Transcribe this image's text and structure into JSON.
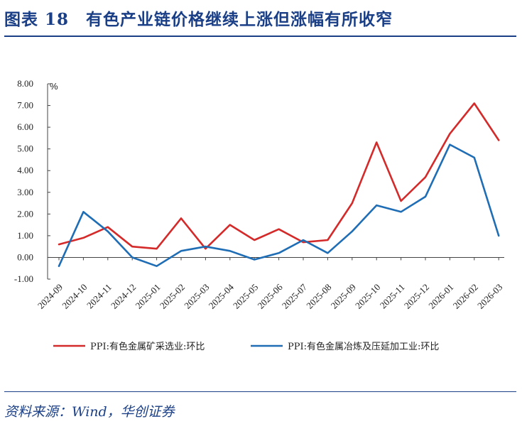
{
  "header": {
    "title": "图表 18　有色产业链价格继续上涨但涨幅有所收窄"
  },
  "footer": {
    "source": "资料来源：Wind，华创证券"
  },
  "chart_data": {
    "type": "line",
    "title": "",
    "ylabel": "%",
    "xlabel": "",
    "ylim": [
      -1.0,
      8.0
    ],
    "yticks": [
      -1.0,
      0.0,
      1.0,
      2.0,
      3.0,
      4.0,
      5.0,
      6.0,
      7.0,
      8.0
    ],
    "ytick_labels": [
      "-1.00",
      "0.00",
      "1.00",
      "2.00",
      "3.00",
      "4.00",
      "5.00",
      "6.00",
      "7.00",
      "8.00"
    ],
    "categories": [
      "2024-09",
      "2024-10",
      "2024-11",
      "2024-12",
      "2025-01",
      "2025-02",
      "2025-03",
      "2025-04",
      "2025-05",
      "2025-06",
      "2025-07",
      "2025-08",
      "2025-09",
      "2025-10",
      "2025-11",
      "2025-12",
      "2026-01",
      "2026-02",
      "2026-03"
    ],
    "series": [
      {
        "name": "PPI:有色金属矿采选业:环比",
        "color": "#d42a2a",
        "values": [
          0.6,
          0.9,
          1.4,
          0.5,
          0.4,
          1.8,
          0.4,
          1.5,
          0.8,
          1.3,
          0.7,
          0.8,
          2.5,
          5.3,
          2.6,
          3.7,
          5.7,
          7.1,
          5.4
        ]
      },
      {
        "name": "PPI:有色金属冶炼及压延加工业:环比",
        "color": "#1f6db5",
        "values": [
          -0.4,
          2.1,
          1.2,
          0.0,
          -0.4,
          0.3,
          0.5,
          0.3,
          -0.1,
          0.2,
          0.8,
          0.2,
          1.2,
          2.4,
          2.1,
          2.8,
          5.2,
          4.6,
          1.0
        ]
      }
    ],
    "grid": false,
    "legend_position": "bottom"
  }
}
